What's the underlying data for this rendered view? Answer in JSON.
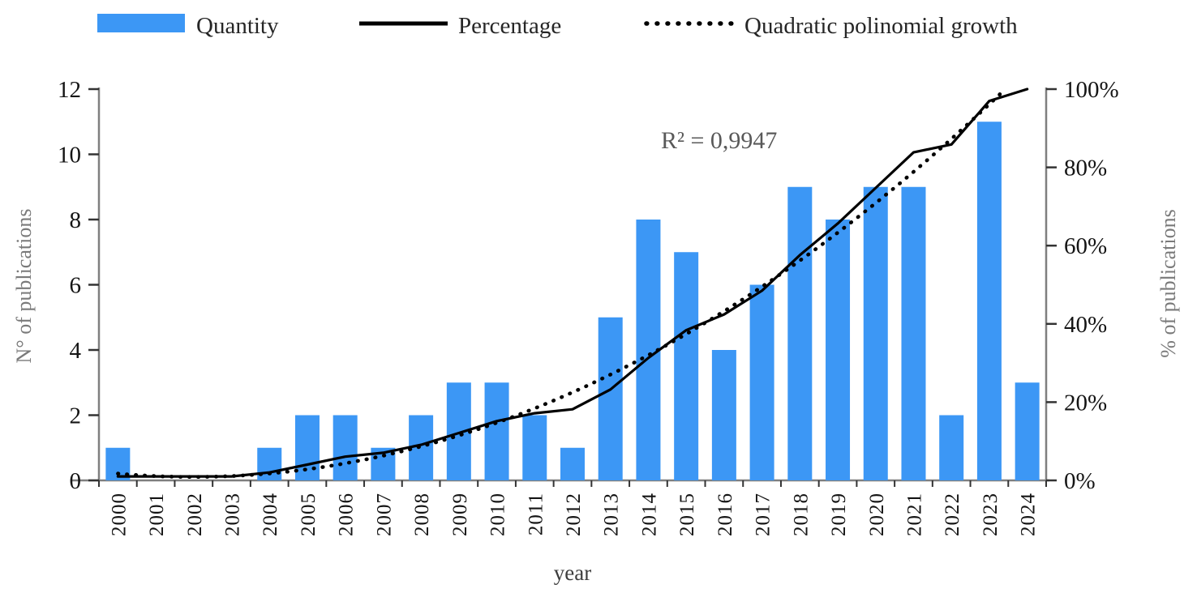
{
  "figure": {
    "annotation": "R² = 0,9947",
    "legend": {
      "quantity_label": "Quantity",
      "percentage_label": "Percentage",
      "quadratic_label": "Quadratic polinomial growth"
    }
  },
  "colors": {
    "bar_blue": "#3C97F5",
    "line_black": "#000000",
    "axis_gray": "#7f7f7f",
    "label_gray": "#7a7a7a",
    "annotation_gray": "#595959"
  },
  "chart_data": {
    "type": "bar+line",
    "title": "",
    "categories": [
      "2000",
      "2001",
      "2002",
      "2003",
      "2004",
      "2005",
      "2006",
      "2007",
      "2008",
      "2009",
      "2010",
      "2011",
      "2012",
      "2013",
      "2014",
      "2015",
      "2016",
      "2017",
      "2018",
      "2019",
      "2020",
      "2021",
      "2022",
      "2023",
      "2024"
    ],
    "series": [
      {
        "name": "Quantity",
        "type": "bar",
        "axis": "left",
        "color": "#3C97F5",
        "values": [
          1,
          0,
          0,
          0,
          1,
          2,
          2,
          1,
          2,
          3,
          3,
          2,
          1,
          5,
          8,
          7,
          4,
          6,
          9,
          8,
          9,
          9,
          2,
          11,
          3
        ]
      },
      {
        "name": "Percentage",
        "type": "line",
        "axis": "right",
        "color": "#000000",
        "values_percent": [
          1.01,
          1.01,
          1.01,
          1.01,
          2.02,
          4.04,
          6.06,
          7.07,
          9.09,
          12.12,
          15.15,
          17.17,
          18.18,
          23.23,
          31.31,
          38.38,
          42.42,
          48.48,
          57.58,
          65.66,
          74.75,
          83.84,
          85.86,
          96.97,
          100
        ]
      },
      {
        "name": "Quadratic polinomial growth",
        "type": "dotted-line",
        "axis": "right",
        "color": "#000000",
        "fit": {
          "a": 0.2158,
          "b": -0.8592,
          "c": 1.743,
          "r_squared_label": "R² = 0,9947"
        }
      }
    ],
    "left_axis": {
      "label": "N° of publications",
      "range": [
        0,
        12
      ],
      "ticks": [
        0,
        2,
        4,
        6,
        8,
        10,
        12
      ]
    },
    "right_axis": {
      "label": "% of publications",
      "range": [
        0,
        100
      ],
      "tick_values": [
        0,
        20,
        40,
        60,
        80,
        100
      ],
      "ticks": [
        "0%",
        "20%",
        "40%",
        "60%",
        "80%",
        "100%"
      ]
    },
    "x_axis": {
      "label": "year"
    },
    "legend_position": "top",
    "grid": false
  }
}
